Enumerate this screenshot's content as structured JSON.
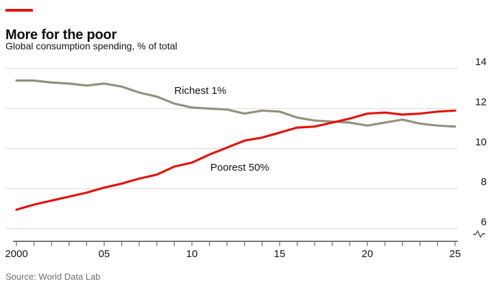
{
  "header": {
    "accent_color": "#e3120b",
    "title": "More for the poor",
    "subtitle": "Global consumption spending, % of total"
  },
  "footer": {
    "source": "Source: World Data Lab"
  },
  "chart_data": {
    "type": "line",
    "title": "More for the poor",
    "subtitle": "Global consumption spending, % of total",
    "x": [
      2000,
      2001,
      2002,
      2003,
      2004,
      2005,
      2006,
      2007,
      2008,
      2009,
      2010,
      2011,
      2012,
      2013,
      2014,
      2015,
      2016,
      2017,
      2018,
      2019,
      2020,
      2021,
      2022,
      2023,
      2024,
      2025
    ],
    "series": [
      {
        "name": "Richest 1%",
        "color": "#92907e",
        "values": [
          13.4,
          13.4,
          13.3,
          13.25,
          13.15,
          13.25,
          13.1,
          12.8,
          12.6,
          12.25,
          12.05,
          12.0,
          11.95,
          11.75,
          11.9,
          11.85,
          11.55,
          11.4,
          11.35,
          11.3,
          11.15,
          11.3,
          11.45,
          11.25,
          11.15,
          11.1
        ]
      },
      {
        "name": "Poorest 50%",
        "color": "#e3120b",
        "values": [
          6.95,
          7.2,
          7.4,
          7.6,
          7.8,
          8.05,
          8.25,
          8.5,
          8.7,
          9.1,
          9.3,
          9.7,
          10.05,
          10.4,
          10.55,
          10.8,
          11.05,
          11.1,
          11.3,
          11.5,
          11.75,
          11.8,
          11.7,
          11.75,
          11.85,
          11.9
        ]
      }
    ],
    "xticks": [
      {
        "value": 2000,
        "label": "2000"
      },
      {
        "value": 2005,
        "label": "05"
      },
      {
        "value": 2010,
        "label": "10"
      },
      {
        "value": 2015,
        "label": "15"
      },
      {
        "value": 2020,
        "label": "20"
      },
      {
        "value": 2025,
        "label": "25"
      }
    ],
    "yticks": [
      {
        "value": 14,
        "label": "14"
      },
      {
        "value": 12,
        "label": "12"
      },
      {
        "value": 10,
        "label": "10"
      },
      {
        "value": 8,
        "label": "8"
      },
      {
        "value": 6,
        "label": "6"
      }
    ],
    "xlim": [
      2000,
      2025
    ],
    "ylim": [
      6,
      14
    ],
    "grid": "horizontal",
    "y_axis_side": "right",
    "legend_position": "inline-labels",
    "axis_break_marker": true,
    "annotations": [
      {
        "text": "Richest 1%",
        "series": "Richest 1%",
        "x": 2009.0,
        "y": 12.73
      },
      {
        "text": "Poorest 50%",
        "series": "Poorest 50%",
        "x": 2011.05,
        "y": 8.9
      }
    ]
  }
}
